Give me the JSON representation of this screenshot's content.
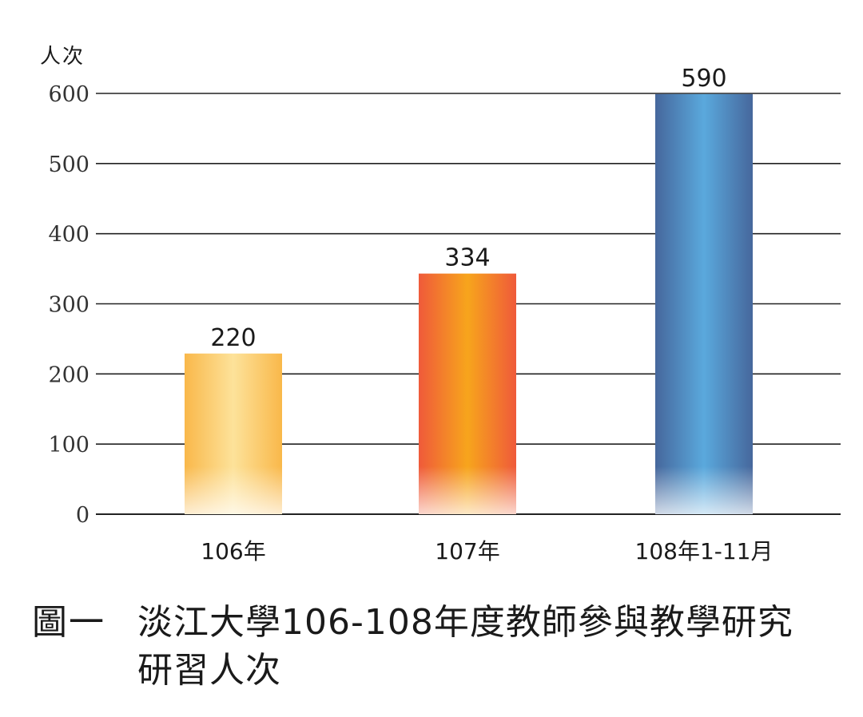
{
  "chart_data": {
    "type": "bar",
    "categories": [
      "106年",
      "107年",
      "108年1-11月"
    ],
    "values": [
      220,
      334,
      590
    ],
    "ylabel": "人次",
    "ylim": [
      0,
      600
    ],
    "yticks": [
      0,
      100,
      200,
      300,
      400,
      500,
      600
    ],
    "grid": true,
    "bar_colors": [
      {
        "edge": "#f9b84a",
        "mid": "#fde29a"
      },
      {
        "edge": "#ef5a3a",
        "mid": "#f7a51c"
      },
      {
        "edge": "#46679c",
        "mid": "#5aa9dd"
      }
    ]
  },
  "caption": {
    "label": "圖一",
    "text": "淡江大學106-108年度教師參與教學研究研習人次"
  }
}
